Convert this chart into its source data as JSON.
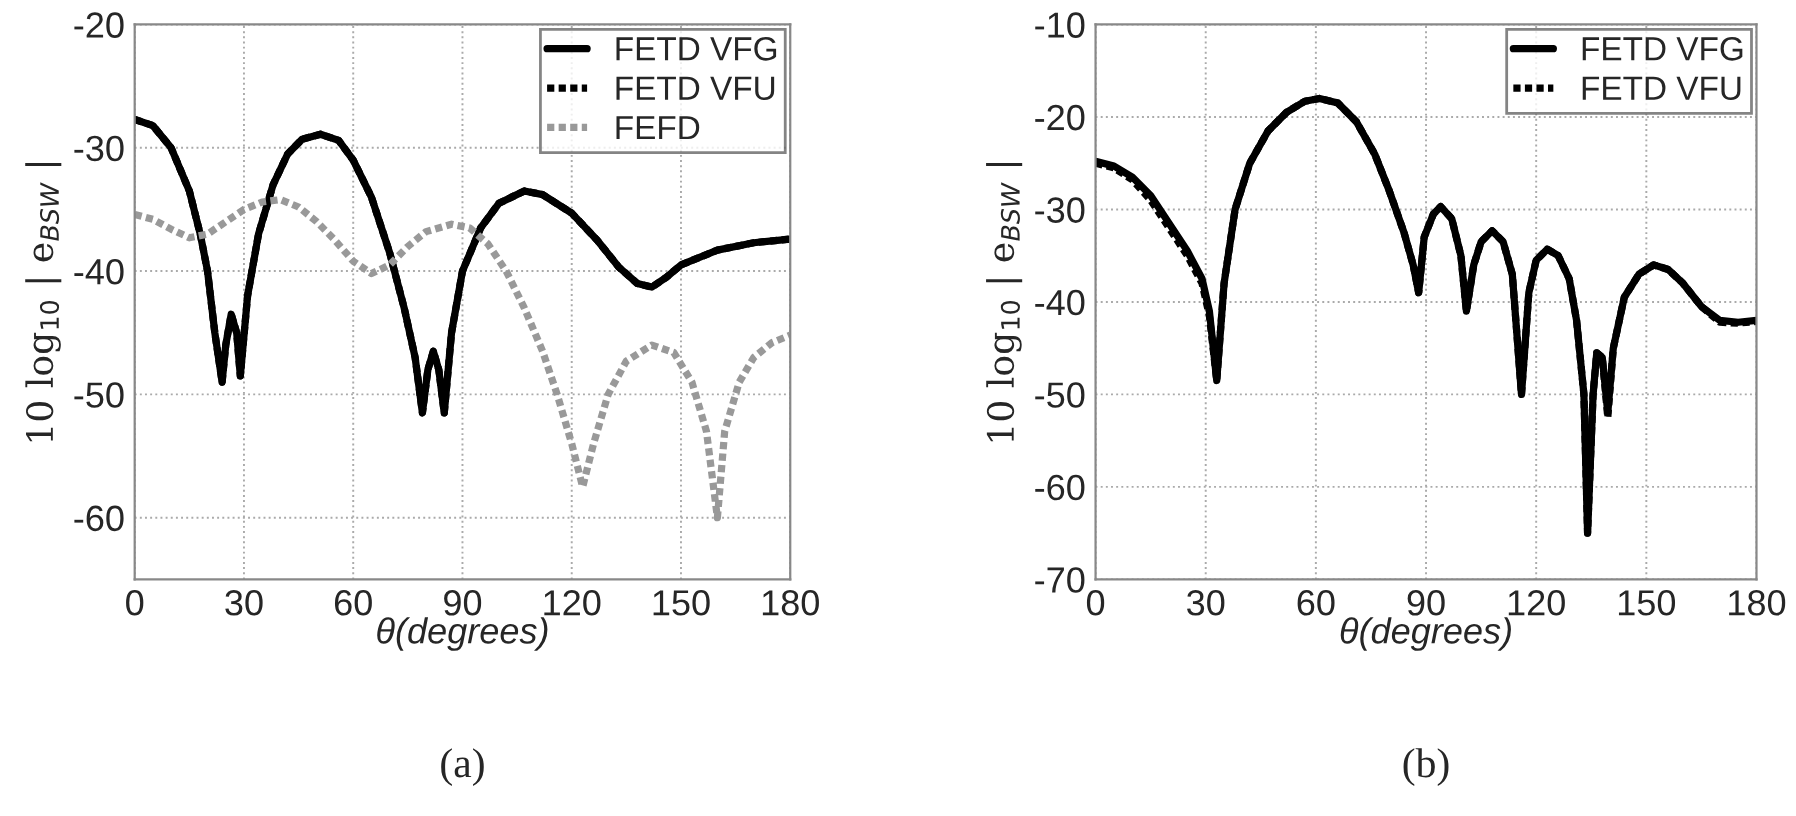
{
  "chart_data": [
    {
      "type": "line",
      "xlabel": "θ(degrees)",
      "ylabel": "10 log$_{10}$ | e$_{BSW}$ |",
      "xlim": [
        0,
        180
      ],
      "xticks": [
        0,
        30,
        60,
        90,
        120,
        150,
        180
      ],
      "ylim": [
        -65,
        -20
      ],
      "yticks": [
        -60,
        -50,
        -40,
        -30,
        -20
      ],
      "grid": true,
      "legend": "top right",
      "annotations": [
        "(a)"
      ],
      "series": [
        {
          "name": "FETD VFG",
          "color": "#000000",
          "line_style": "solid",
          "x": [
            0,
            5,
            10,
            15,
            18,
            20,
            22,
            24,
            25,
            26.5,
            28,
            29,
            31,
            34,
            38,
            42,
            46,
            51,
            56,
            60,
            65,
            70,
            74,
            77,
            79,
            80.5,
            82,
            83.5,
            85,
            87,
            90,
            95,
            100,
            107,
            112,
            120,
            127,
            133,
            138,
            142,
            146,
            150,
            160,
            170,
            180
          ],
          "values": [
            -27.7,
            -28.2,
            -30,
            -33.5,
            -37,
            -40,
            -45,
            -49,
            -46,
            -43.5,
            -45,
            -48.5,
            -42,
            -37,
            -33,
            -30.5,
            -29.3,
            -28.9,
            -29.4,
            -31,
            -34,
            -38.5,
            -43,
            -47,
            -51.5,
            -48,
            -46.5,
            -48,
            -51.5,
            -45,
            -40,
            -36.5,
            -34.5,
            -33.5,
            -33.8,
            -35.3,
            -37.5,
            -39.7,
            -41,
            -41.3,
            -40.5,
            -39.5,
            -38.3,
            -37.7,
            -37.4
          ]
        },
        {
          "name": "FETD VFU",
          "color": "#000000",
          "line_style": "dotted",
          "x": [
            0,
            5,
            10,
            15,
            18,
            20,
            22,
            24,
            25,
            26.5,
            28,
            29,
            31,
            34,
            38,
            42,
            46,
            51,
            56,
            60,
            65,
            70,
            74,
            77,
            79,
            80.5,
            82,
            83.5,
            85,
            87,
            90,
            95,
            100,
            107,
            112,
            120,
            127,
            133,
            138,
            142,
            146,
            150,
            160,
            170,
            180
          ],
          "values": [
            -27.7,
            -28.2,
            -30,
            -33.5,
            -37,
            -40,
            -45,
            -49,
            -46,
            -43.5,
            -45,
            -48.5,
            -42,
            -37,
            -33,
            -30.5,
            -29.3,
            -28.9,
            -29.4,
            -31,
            -34,
            -38.5,
            -43,
            -47,
            -51.5,
            -48,
            -46.5,
            -48,
            -51.5,
            -45,
            -40,
            -36.5,
            -34.5,
            -33.5,
            -33.8,
            -35.3,
            -37.5,
            -39.7,
            -41,
            -41.3,
            -40.5,
            -39.5,
            -38.3,
            -37.7,
            -37.4
          ]
        },
        {
          "name": "FEFD",
          "color": "#999999",
          "line_style": "dotted",
          "x": [
            0,
            5,
            10,
            15,
            20,
            25,
            30,
            35,
            40,
            45,
            50,
            55,
            60,
            65,
            70,
            75,
            80,
            87,
            92,
            97,
            102,
            107,
            112,
            116,
            120,
            123,
            126,
            130,
            135,
            142,
            148,
            153,
            157,
            160,
            162,
            166,
            170,
            175,
            180
          ],
          "values": [
            -35.4,
            -35.8,
            -36.6,
            -37.3,
            -37,
            -36,
            -35,
            -34.4,
            -34.2,
            -34.8,
            -36,
            -37.5,
            -39.2,
            -40.2,
            -39.5,
            -38,
            -36.8,
            -36.2,
            -36.5,
            -37.8,
            -40,
            -43,
            -46.5,
            -50,
            -54,
            -57.5,
            -54,
            -50,
            -47.3,
            -46,
            -46.6,
            -49,
            -53,
            -60,
            -53,
            -49,
            -47,
            -45.8,
            -45.2
          ]
        }
      ]
    },
    {
      "type": "line",
      "xlabel": "θ(degrees)",
      "ylabel": "10 log$_{10}$ | e$_{BSW}$ |",
      "xlim": [
        0,
        180
      ],
      "xticks": [
        0,
        30,
        60,
        90,
        120,
        150,
        180
      ],
      "ylim": [
        -70,
        -10
      ],
      "yticks": [
        -70,
        -60,
        -50,
        -40,
        -30,
        -20,
        -10
      ],
      "grid": true,
      "legend": "top right",
      "annotations": [
        "(b)"
      ],
      "series": [
        {
          "name": "FETD VFG",
          "color": "#000000",
          "line_style": "solid",
          "x": [
            0,
            5,
            10,
            15,
            20,
            25,
            29,
            31,
            33,
            35,
            38,
            42,
            47,
            52,
            57,
            61,
            66,
            71,
            76,
            80,
            84,
            86.5,
            88,
            89.5,
            92,
            94,
            97,
            99.5,
            101,
            103,
            105,
            108,
            111,
            113.5,
            116,
            118,
            120,
            123,
            126,
            129,
            131,
            133,
            134,
            135.5,
            136.5,
            138,
            139.5,
            141,
            144,
            148,
            152,
            156,
            160,
            165,
            170,
            175,
            180
          ],
          "values": [
            -24.8,
            -25.3,
            -26.5,
            -28.5,
            -31.5,
            -34.5,
            -37.5,
            -41,
            -48.5,
            -38,
            -30,
            -25,
            -21.5,
            -19.5,
            -18.3,
            -18,
            -18.5,
            -20.5,
            -24,
            -28,
            -32.5,
            -36,
            -39,
            -33,
            -30.5,
            -29.7,
            -31,
            -35,
            -41,
            -36,
            -33.5,
            -32.3,
            -33.5,
            -37,
            -50,
            -39,
            -35.5,
            -34.3,
            -35,
            -37.5,
            -42,
            -50,
            -65,
            -50,
            -45.5,
            -46,
            -52,
            -45,
            -39.5,
            -37,
            -36,
            -36.5,
            -38,
            -40.5,
            -42,
            -42.2,
            -42
          ]
        },
        {
          "name": "FETD VFU",
          "color": "#000000",
          "line_style": "dotted",
          "x": [
            0,
            5,
            10,
            15,
            20,
            25,
            29,
            31,
            33,
            35,
            38,
            42,
            47,
            52,
            57,
            61,
            66,
            71,
            76,
            80,
            84,
            86.5,
            88,
            89.5,
            92,
            94,
            97,
            99.5,
            101,
            103,
            105,
            108,
            111,
            113.5,
            116,
            118,
            120,
            123,
            126,
            129,
            131,
            133,
            134,
            135.5,
            136.5,
            138,
            139.5,
            141,
            144,
            148,
            152,
            156,
            160,
            165,
            170,
            175,
            180
          ],
          "values": [
            -25,
            -25.5,
            -26.8,
            -29,
            -32,
            -35,
            -38,
            -41.5,
            -48.5,
            -38,
            -30,
            -25,
            -21.5,
            -19.5,
            -18.3,
            -18,
            -18.5,
            -20.5,
            -24,
            -28,
            -32.5,
            -36,
            -39,
            -33,
            -30.5,
            -29.7,
            -31,
            -35,
            -41,
            -36,
            -33.5,
            -32.3,
            -33.5,
            -37,
            -50,
            -39,
            -35.5,
            -34.3,
            -35,
            -37.5,
            -42,
            -50,
            -65,
            -50,
            -45.5,
            -46,
            -52.5,
            -45,
            -39.5,
            -37,
            -36,
            -36.5,
            -38,
            -40.5,
            -42.2,
            -42.3,
            -42.1
          ]
        }
      ]
    }
  ]
}
